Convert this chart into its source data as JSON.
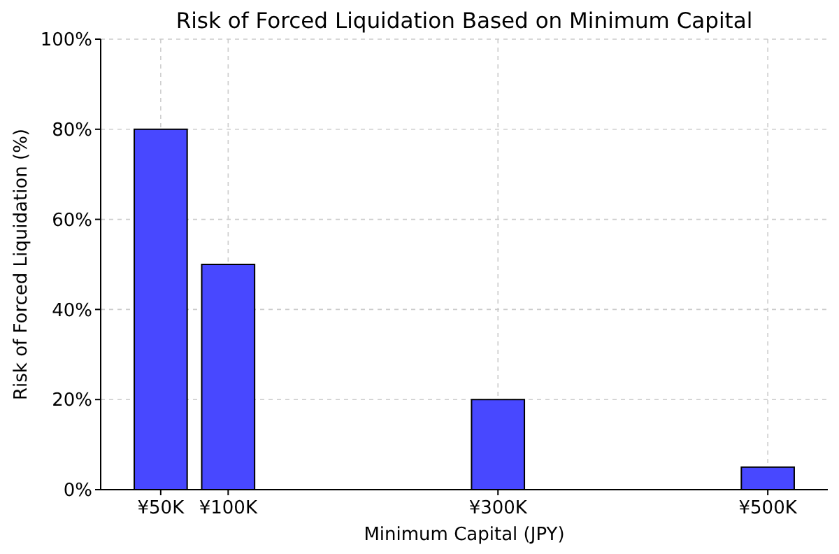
{
  "chart_data": {
    "type": "bar",
    "title": "Risk of Forced Liquidation Based on Minimum Capital",
    "xlabel": "Minimum Capital (JPY)",
    "ylabel": "Risk of Forced Liquidation (%)",
    "x": [
      50,
      100,
      300,
      500
    ],
    "values": [
      80,
      50,
      20,
      5
    ],
    "color": "#4848ff",
    "xlim": [
      5.5,
      544.5
    ],
    "xticks": [
      {
        "value": 50,
        "label": "¥50K"
      },
      {
        "value": 100,
        "label": "¥100K"
      },
      {
        "value": 300,
        "label": "¥300K"
      },
      {
        "value": 500,
        "label": "¥500K"
      }
    ],
    "ylim": [
      0,
      100
    ],
    "yticks": [
      {
        "value": 0,
        "label": "0%"
      },
      {
        "value": 20,
        "label": "20%"
      },
      {
        "value": 40,
        "label": "40%"
      },
      {
        "value": 60,
        "label": "60%"
      },
      {
        "value": 80,
        "label": "80%"
      },
      {
        "value": 100,
        "label": "100%"
      }
    ],
    "grid": true
  }
}
